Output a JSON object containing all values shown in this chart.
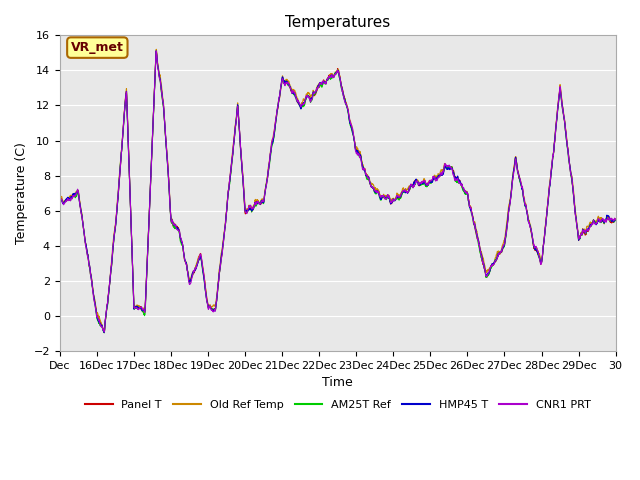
{
  "title": "Temperatures",
  "xlabel": "Time",
  "ylabel": "Temperature (C)",
  "ylim": [
    -2,
    16
  ],
  "yticks": [
    -2,
    0,
    2,
    4,
    6,
    8,
    10,
    12,
    14,
    16
  ],
  "background_color": "#f0f0f0",
  "plot_bg_color": "#e8e8e8",
  "legend_label": "VR_met",
  "series_colors": {
    "Panel T": "#cc0000",
    "Old Ref Temp": "#cc8800",
    "AM25T Ref": "#00cc00",
    "HMP45 T": "#0000cc",
    "CNR1 PRT": "#aa00cc"
  },
  "xtick_labels": [
    "Dec",
    "16Dec",
    "17Dec",
    "18Dec",
    "19Dec",
    "20Dec",
    "21Dec",
    "22Dec",
    "23Dec",
    "24Dec",
    "25Dec",
    "26Dec",
    "27Dec",
    "28Dec",
    "29Dec",
    "30"
  ],
  "seed": 42
}
